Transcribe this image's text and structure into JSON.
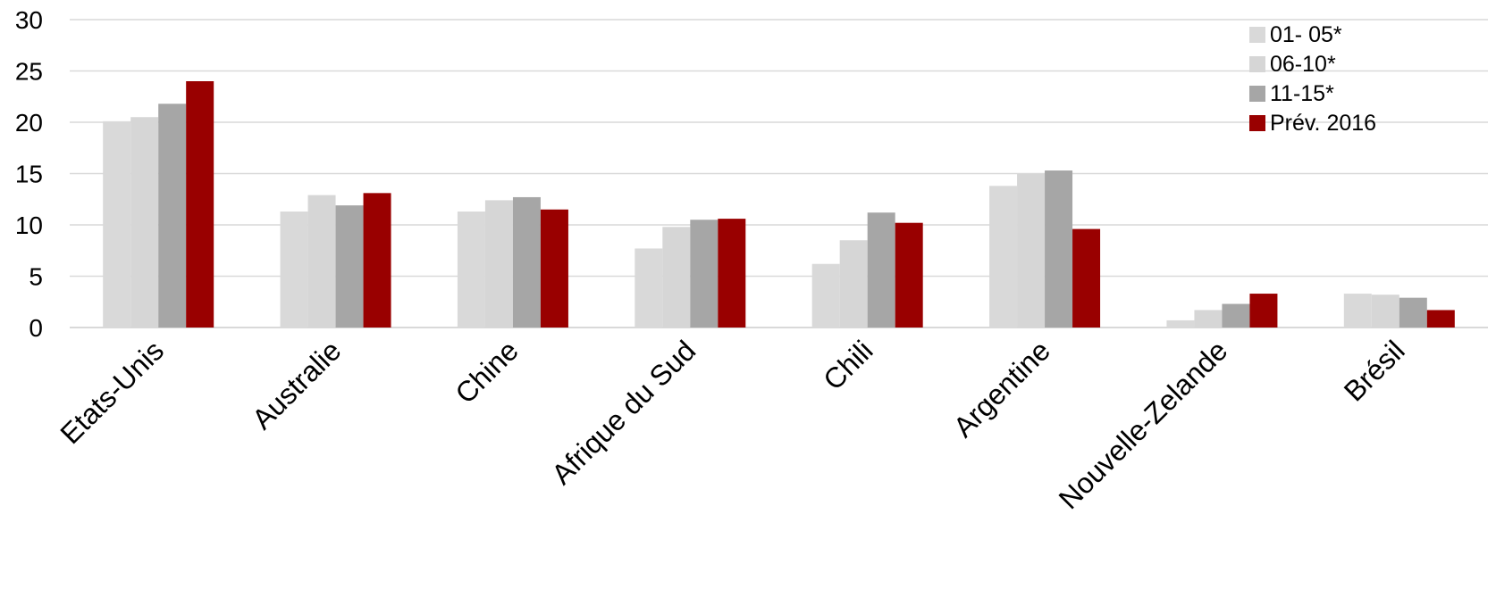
{
  "chart_data": {
    "type": "bar",
    "title": "",
    "xlabel": "",
    "ylabel": "",
    "ylim": [
      0,
      30
    ],
    "yticks": [
      0,
      5,
      10,
      15,
      20,
      25,
      30
    ],
    "ytick_labels": [
      "0",
      "5",
      "10",
      "15",
      "20",
      "25",
      "30"
    ],
    "grid": true,
    "legend_position": "top-right",
    "categories": [
      "Etats-Unis",
      "Australie",
      "Chine",
      "Afrique du Sud",
      "Chili",
      "Argentine",
      "Nouvelle-Zelande",
      "Brésil"
    ],
    "series": [
      {
        "name": "01- 05*",
        "color": "#d9d9d9",
        "values": [
          20.1,
          11.3,
          11.3,
          7.7,
          6.2,
          13.8,
          0.7,
          3.3
        ]
      },
      {
        "name": "06-10*",
        "color": "#d6d6d6",
        "values": [
          20.5,
          12.9,
          12.4,
          9.8,
          8.5,
          15.0,
          1.7,
          3.2
        ]
      },
      {
        "name": "11-15*",
        "color": "#a6a6a6",
        "values": [
          21.8,
          11.9,
          12.7,
          10.5,
          11.2,
          15.3,
          2.3,
          2.9
        ]
      },
      {
        "name": "Prév. 2016",
        "color": "#990000",
        "values": [
          24.0,
          13.1,
          11.5,
          10.6,
          10.2,
          9.6,
          3.3,
          1.7
        ]
      }
    ],
    "series_fill_colors": [
      "#d9d9d9",
      "#d6d6d6",
      "#a6a6a6",
      "#990000"
    ],
    "axis_color": "#d9d9d9",
    "grid_color": "#d9d9d9"
  }
}
